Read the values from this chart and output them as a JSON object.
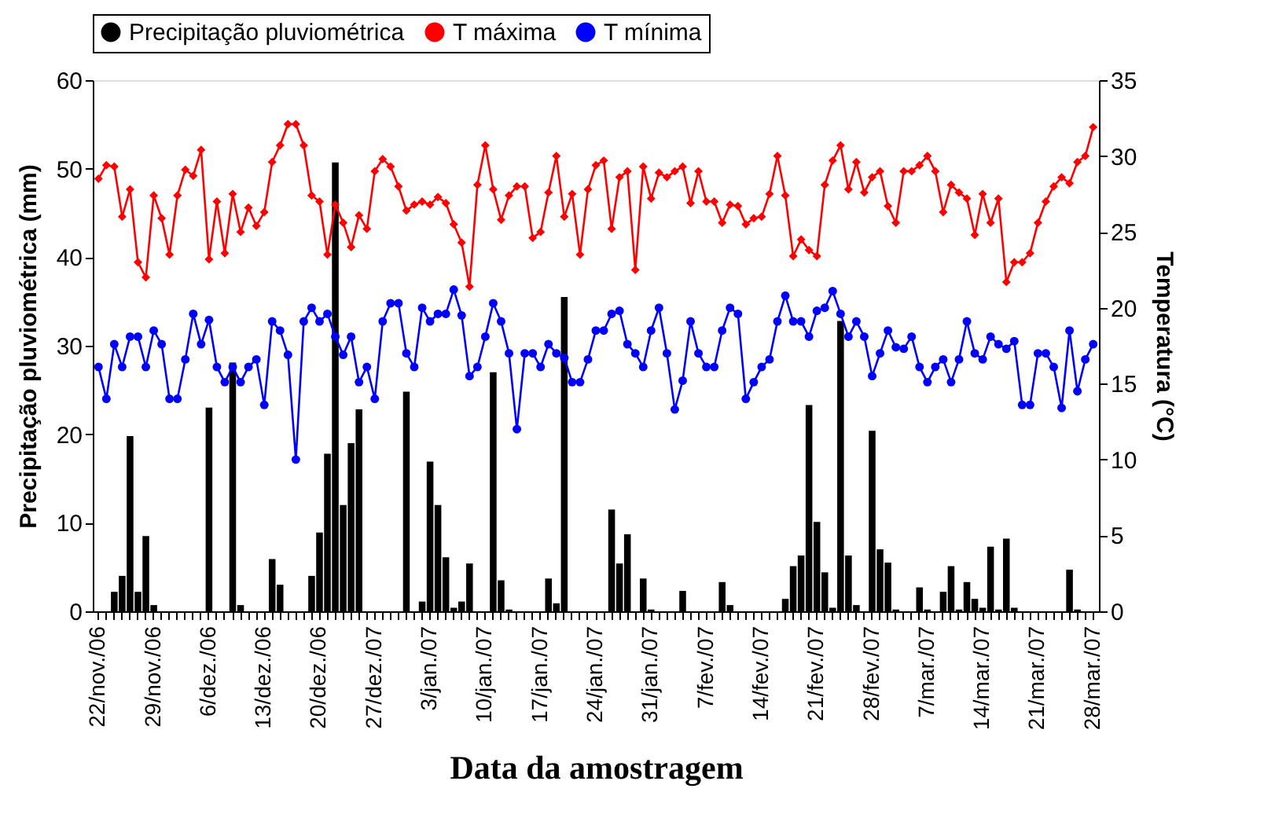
{
  "chart_data": {
    "type": "bar",
    "xlabel": "Data da amostragem",
    "ylabel": "Precipitação pluviométrica (mm)",
    "y2label": "Temperatura (°C)",
    "categories": [
      "22/nov./06",
      null,
      null,
      null,
      null,
      null,
      null,
      "29/nov./06",
      null,
      null,
      null,
      null,
      null,
      null,
      "6/dez./06",
      null,
      null,
      null,
      null,
      null,
      null,
      "13/dez./06",
      null,
      null,
      null,
      null,
      null,
      null,
      "20/dez./06",
      null,
      null,
      null,
      null,
      null,
      null,
      "27/dez./07",
      null,
      null,
      null,
      null,
      null,
      null,
      "3/jan./07",
      null,
      null,
      null,
      null,
      null,
      null,
      "10/jan./07",
      null,
      null,
      null,
      null,
      null,
      null,
      "17/jan./07",
      null,
      null,
      null,
      null,
      null,
      null,
      "24/jan./07",
      null,
      null,
      null,
      null,
      null,
      null,
      "31/jan./07",
      null,
      null,
      null,
      null,
      null,
      null,
      "7/fev./07",
      null,
      null,
      null,
      null,
      null,
      null,
      "14/fev./07",
      null,
      null,
      null,
      null,
      null,
      null,
      "21/fev./07",
      null,
      null,
      null,
      null,
      null,
      null,
      "28/fev./07",
      null,
      null,
      null,
      null,
      null,
      null,
      "7/mar./07",
      null,
      null,
      null,
      null,
      null,
      null,
      "14/mar./07",
      null,
      null,
      null,
      null,
      null,
      null,
      "21/mar./07",
      null,
      null,
      null,
      null,
      null,
      null,
      "28/mar./07"
    ],
    "series": [
      {
        "name": "Precipitação pluviométrica",
        "axis": "y",
        "color": "#000000",
        "values": [
          0,
          0,
          2.2,
          4.0,
          19.8,
          2.2,
          8.5,
          0.7,
          0,
          0,
          0,
          0,
          0,
          0,
          23.0,
          0,
          0,
          28.1,
          0.7,
          0,
          0,
          0,
          5.9,
          3.0,
          0,
          0,
          0,
          4.0,
          8.9,
          17.8,
          50.7,
          12.0,
          19.0,
          22.8,
          0,
          0,
          0,
          0,
          0,
          24.8,
          0,
          1.1,
          16.9,
          12.0,
          6.1,
          0.4,
          1.1,
          5.4,
          0,
          0,
          27.0,
          3.5,
          0.2,
          0,
          0,
          0,
          0,
          3.7,
          0.9,
          35.5,
          0,
          0,
          0,
          0,
          0,
          11.5,
          5.4,
          8.7,
          0,
          3.7,
          0.2,
          0,
          0,
          0,
          2.3,
          0,
          0,
          0,
          0,
          3.3,
          0.7,
          0,
          0,
          0,
          0,
          0,
          0,
          1.4,
          5.1,
          6.3,
          23.3,
          10.1,
          4.4,
          0.4,
          32.8,
          6.3,
          0.7,
          0,
          20.4,
          7.0,
          5.5,
          0.2,
          0,
          0,
          2.7,
          0.2,
          0,
          2.2,
          5.1,
          0.2,
          3.3,
          1.4,
          0.4,
          7.3,
          0.2,
          8.2,
          0.4,
          0,
          0,
          0,
          0,
          0,
          0,
          4.7,
          0.2,
          0,
          0
        ]
      },
      {
        "name": "T máxima",
        "type": "line",
        "axis": "y2",
        "color": "#ff0000",
        "marker": "diamond",
        "values": [
          28.5,
          29.4,
          29.3,
          26.0,
          27.8,
          23.0,
          22.0,
          27.4,
          25.9,
          23.5,
          27.4,
          29.1,
          28.7,
          30.4,
          23.2,
          27.0,
          23.6,
          27.5,
          25.0,
          26.6,
          25.4,
          26.3,
          29.6,
          30.7,
          32.1,
          32.1,
          30.7,
          27.4,
          27.0,
          23.5,
          26.8,
          25.6,
          24.0,
          26.1,
          25.2,
          29.0,
          29.8,
          29.3,
          28.0,
          26.4,
          26.8,
          27.0,
          26.8,
          27.3,
          26.9,
          25.5,
          24.3,
          21.4,
          28.1,
          30.7,
          27.8,
          25.8,
          27.4,
          28.0,
          28.0,
          24.6,
          25.0,
          27.6,
          30.0,
          26.0,
          27.5,
          23.5,
          27.8,
          29.4,
          29.7,
          25.2,
          28.6,
          29.0,
          22.5,
          29.3,
          27.2,
          28.9,
          28.6,
          29.0,
          29.3,
          26.9,
          29.0,
          27.0,
          27.0,
          25.6,
          26.8,
          26.7,
          25.5,
          25.9,
          26.0,
          27.5,
          30.0,
          27.4,
          23.4,
          24.5,
          23.8,
          23.4,
          28.1,
          29.7,
          30.7,
          27.8,
          29.6,
          27.6,
          28.6,
          29.0,
          26.7,
          25.6,
          29.0,
          29.0,
          29.4,
          30.0,
          29.0,
          26.3,
          28.1,
          27.6,
          27.2,
          24.8,
          27.5,
          25.6,
          27.2,
          21.7,
          23.0,
          23.0,
          23.6,
          25.6,
          27.0,
          28.0,
          28.6,
          28.2,
          29.6,
          30.0,
          31.9
        ]
      },
      {
        "name": "T mínima",
        "type": "line",
        "axis": "y2",
        "color": "#0000ff",
        "marker": "circle",
        "values": [
          16.1,
          14.0,
          17.6,
          16.1,
          18.1,
          18.1,
          16.1,
          18.5,
          17.6,
          14.0,
          14.0,
          16.6,
          19.6,
          17.6,
          19.2,
          16.1,
          15.1,
          16.1,
          15.1,
          16.1,
          16.6,
          13.6,
          19.1,
          18.5,
          16.9,
          10.0,
          19.1,
          20.0,
          19.1,
          19.6,
          18.1,
          16.9,
          18.1,
          15.1,
          16.1,
          14.0,
          19.1,
          20.3,
          20.3,
          17.0,
          16.1,
          20.0,
          19.1,
          19.6,
          19.6,
          21.2,
          19.5,
          15.5,
          16.1,
          18.1,
          20.3,
          19.1,
          17.0,
          12.0,
          17.0,
          17.0,
          16.1,
          17.6,
          17.0,
          16.7,
          15.1,
          15.1,
          16.6,
          18.5,
          18.5,
          19.6,
          19.8,
          17.6,
          17.0,
          16.1,
          18.5,
          20.0,
          17.0,
          13.3,
          15.2,
          19.1,
          17.0,
          16.1,
          16.1,
          18.5,
          20.0,
          19.6,
          14.0,
          15.1,
          16.1,
          16.6,
          19.1,
          20.8,
          19.1,
          19.1,
          18.1,
          19.8,
          20.0,
          21.1,
          19.6,
          18.1,
          19.1,
          18.1,
          15.5,
          17.0,
          18.5,
          17.4,
          17.3,
          18.1,
          16.1,
          15.1,
          16.1,
          16.6,
          15.1,
          16.6,
          19.1,
          17.0,
          16.6,
          18.1,
          17.6,
          17.3,
          17.8,
          13.6,
          13.6,
          17.0,
          17.0,
          16.1,
          13.4,
          18.5,
          14.5,
          16.6,
          17.6
        ]
      }
    ],
    "ylim": [
      0,
      60
    ],
    "yticks": [
      0,
      10,
      20,
      30,
      40,
      50,
      60
    ],
    "y2lim": [
      0,
      35
    ],
    "y2ticks": [
      0,
      5,
      10,
      15,
      20,
      25,
      30,
      35
    ],
    "legend": "top",
    "grid": false
  }
}
